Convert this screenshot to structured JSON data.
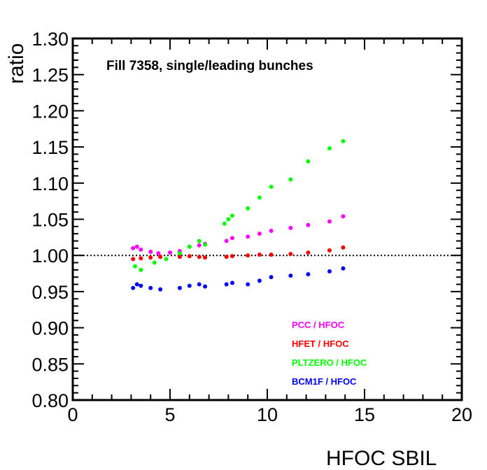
{
  "chart_data": {
    "type": "scatter",
    "title": "",
    "annotation": "Fill 7358, single/leading bunches",
    "xlabel": "HFOC  SBIL",
    "ylabel": "ratio",
    "xlim": [
      0,
      20
    ],
    "ylim": [
      0.8,
      1.3
    ],
    "x_ticks": [
      0,
      5,
      10,
      15,
      20
    ],
    "x_tick_labels": [
      "0",
      "5",
      "10",
      "15",
      "20"
    ],
    "y_ticks": [
      0.8,
      0.85,
      0.9,
      0.95,
      1.0,
      1.05,
      1.1,
      1.15,
      1.2,
      1.25,
      1.3
    ],
    "y_tick_labels": [
      "0.80",
      "0.85",
      "0.90",
      "0.95",
      "1.00",
      "1.05",
      "1.10",
      "1.15",
      "1.20",
      "1.25",
      "1.30"
    ],
    "reference_line": {
      "y": 1.0,
      "style": "dotted"
    },
    "grid": false,
    "legend_position": "bottom-right",
    "series": [
      {
        "name": "PCC / HFOC",
        "color": "#ff00ff",
        "points": [
          [
            3.1,
            1.01
          ],
          [
            3.3,
            1.012
          ],
          [
            3.5,
            1.008
          ],
          [
            4.0,
            1.005
          ],
          [
            4.4,
            1.003
          ],
          [
            5.0,
            1.004
          ],
          [
            5.5,
            1.006
          ],
          [
            6.0,
            1.012
          ],
          [
            6.5,
            1.014
          ],
          [
            6.8,
            1.016
          ],
          [
            7.9,
            1.02
          ],
          [
            8.2,
            1.024
          ],
          [
            9.0,
            1.026
          ],
          [
            9.6,
            1.03
          ],
          [
            10.2,
            1.034
          ],
          [
            11.2,
            1.038
          ],
          [
            12.1,
            1.042
          ],
          [
            13.2,
            1.047
          ],
          [
            13.9,
            1.054
          ]
        ]
      },
      {
        "name": "HFET / HFOC",
        "color": "#ff0000",
        "points": [
          [
            3.1,
            0.995
          ],
          [
            3.5,
            0.996
          ],
          [
            4.0,
            0.997
          ],
          [
            4.5,
            0.998
          ],
          [
            5.5,
            0.998
          ],
          [
            6.0,
            0.999
          ],
          [
            6.5,
            0.998
          ],
          [
            6.8,
            0.997
          ],
          [
            7.9,
            0.998
          ],
          [
            8.2,
            0.999
          ],
          [
            9.0,
            1.0
          ],
          [
            9.6,
            1.001
          ],
          [
            10.2,
            1.001
          ],
          [
            11.2,
            1.002
          ],
          [
            12.1,
            1.004
          ],
          [
            13.2,
            1.007
          ],
          [
            13.9,
            1.011
          ]
        ]
      },
      {
        "name": "PLTZERO / HFOC",
        "color": "#00ff00",
        "points": [
          [
            3.2,
            0.985
          ],
          [
            3.5,
            0.98
          ],
          [
            4.2,
            0.99
          ],
          [
            4.8,
            0.995
          ],
          [
            5.5,
            1.003
          ],
          [
            6.0,
            1.012
          ],
          [
            6.5,
            1.02
          ],
          [
            6.8,
            1.015
          ],
          [
            7.8,
            1.044
          ],
          [
            8.0,
            1.05
          ],
          [
            8.2,
            1.055
          ],
          [
            9.0,
            1.065
          ],
          [
            9.6,
            1.08
          ],
          [
            10.2,
            1.095
          ],
          [
            11.2,
            1.105
          ],
          [
            12.1,
            1.13
          ],
          [
            13.2,
            1.148
          ],
          [
            13.9,
            1.158
          ]
        ]
      },
      {
        "name": "BCM1F / HFOC",
        "color": "#0000ff",
        "points": [
          [
            3.1,
            0.955
          ],
          [
            3.3,
            0.96
          ],
          [
            3.5,
            0.958
          ],
          [
            4.0,
            0.955
          ],
          [
            4.5,
            0.953
          ],
          [
            5.5,
            0.955
          ],
          [
            6.0,
            0.958
          ],
          [
            6.5,
            0.96
          ],
          [
            6.8,
            0.957
          ],
          [
            7.9,
            0.96
          ],
          [
            8.2,
            0.962
          ],
          [
            9.0,
            0.96
          ],
          [
            9.6,
            0.965
          ],
          [
            10.2,
            0.97
          ],
          [
            11.2,
            0.972
          ],
          [
            12.1,
            0.974
          ],
          [
            13.2,
            0.978
          ],
          [
            13.9,
            0.982
          ]
        ]
      }
    ]
  }
}
